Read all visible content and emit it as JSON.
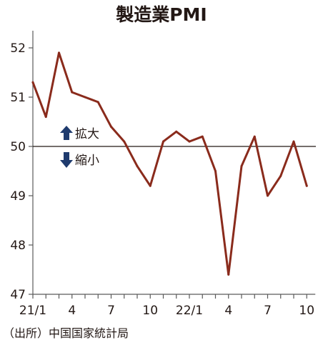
{
  "chart_data": {
    "type": "line",
    "title": "製造業PMI",
    "source": "（出所）中国国家統計局",
    "x": [
      "2021-01",
      "2021-02",
      "2021-03",
      "2021-04",
      "2021-05",
      "2021-06",
      "2021-07",
      "2021-08",
      "2021-09",
      "2021-10",
      "2021-11",
      "2021-12",
      "2022-01",
      "2022-02",
      "2022-03",
      "2022-04",
      "2022-05",
      "2022-06",
      "2022-07",
      "2022-08",
      "2022-09",
      "2022-10"
    ],
    "x_tick_labels": [
      "21/1",
      "4",
      "7",
      "10",
      "22/1",
      "4",
      "7",
      "10"
    ],
    "x_tick_indices": [
      0,
      3,
      6,
      9,
      12,
      15,
      18,
      21
    ],
    "series": [
      {
        "values": [
          51.3,
          50.6,
          51.9,
          51.1,
          51.0,
          50.9,
          50.4,
          50.1,
          49.6,
          49.2,
          50.1,
          50.3,
          50.1,
          50.2,
          49.5,
          47.4,
          49.6,
          50.2,
          49.0,
          49.4,
          50.1,
          49.2
        ]
      }
    ],
    "ylim": [
      47,
      52.5
    ],
    "y_ticks": [
      47,
      48,
      49,
      50,
      51,
      52
    ],
    "reference_line": 50,
    "legend": {
      "up_label": "拡大",
      "down_label": "縮小"
    },
    "colors": {
      "line": "#8a2b1c",
      "axis": "#5a5a5a",
      "arrow": "#1f3b6e",
      "text": "#231815"
    }
  }
}
